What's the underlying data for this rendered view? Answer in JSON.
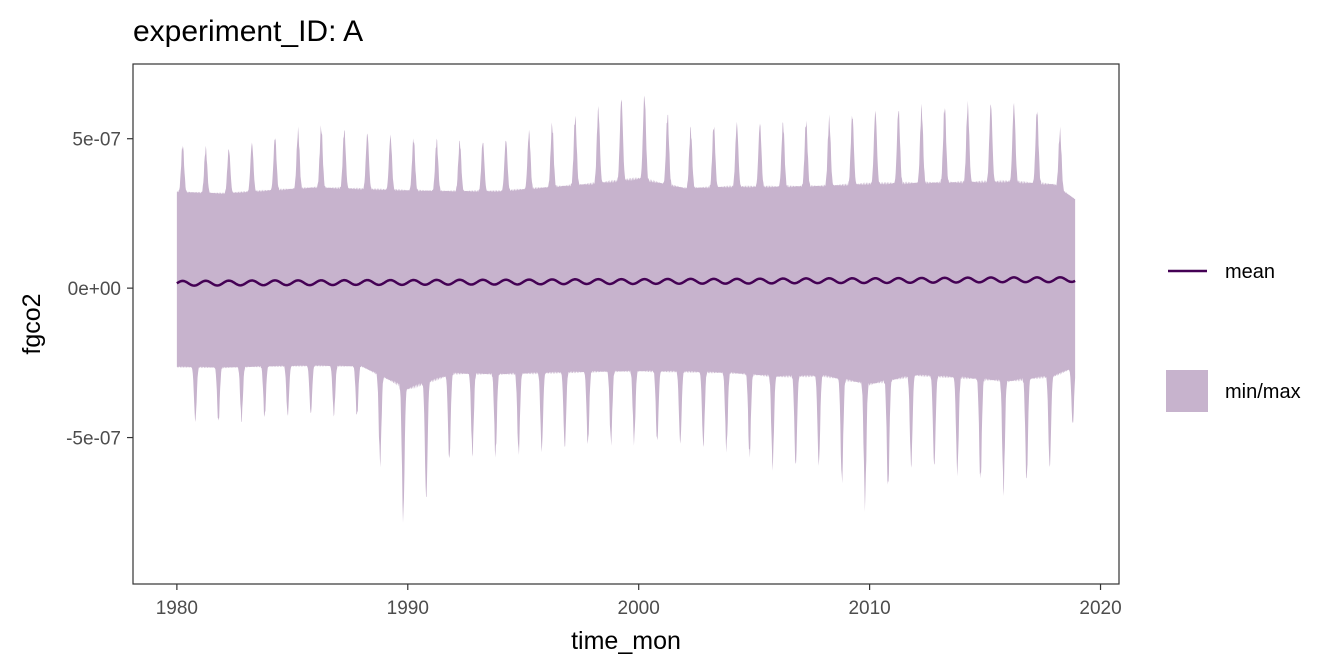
{
  "chart_data": {
    "type": "area",
    "title": "experiment_ID: A",
    "xlabel": "time_mon",
    "ylabel": "fgco2",
    "xlim": [
      1978.1,
      2020.8
    ],
    "ylim": [
      -9.9e-07,
      7.5e-07
    ],
    "x_ticks": [
      1980,
      1990,
      2000,
      2010,
      2020
    ],
    "x_tick_labels": [
      "1980",
      "1990",
      "2000",
      "2010",
      "2020"
    ],
    "y_ticks": [
      5e-07,
      0,
      -5e-07
    ],
    "y_tick_labels": [
      "5e-07",
      "0e+00",
      "-5e-07"
    ],
    "grid": false,
    "legend_position": "right",
    "series": [
      {
        "name": "mean",
        "kind": "line",
        "color": "#440154",
        "x": [
          1980,
          1982,
          1984,
          1986,
          1988,
          1990,
          1992,
          1994,
          1996,
          1998,
          2000,
          2002,
          2004,
          2006,
          2008,
          2010,
          2012,
          2014,
          2016,
          2018,
          2018.9
        ],
        "values": [
          1.6e-08,
          1.7e-08,
          1.8e-08,
          1.8e-08,
          1.9e-08,
          1.9e-08,
          2e-08,
          2e-08,
          2.1e-08,
          2.2e-08,
          2.2e-08,
          2.3e-08,
          2.3e-08,
          2.4e-08,
          2.5e-08,
          2.5e-08,
          2.6e-08,
          2.7e-08,
          2.8e-08,
          2.8e-08,
          2.9e-08
        ],
        "seasonal_amplitude": 8e-09
      },
      {
        "name": "min/max",
        "kind": "ribbon",
        "color": "#c7b3cd",
        "x": [
          1980,
          1982,
          1984,
          1986,
          1988,
          1990,
          1992,
          1994,
          1996,
          1998,
          2000,
          2002,
          2004,
          2006,
          2008,
          2010,
          2012,
          2014,
          2016,
          2018,
          2018.9
        ],
        "max_values": [
          4.8e-07,
          4.6e-07,
          5e-07,
          5.4e-07,
          5.2e-07,
          5e-07,
          4.9e-07,
          4.9e-07,
          5.4e-07,
          5.9e-07,
          6.6e-07,
          5.3e-07,
          5.5e-07,
          5.5e-07,
          5.6e-07,
          5.9e-07,
          6e-07,
          6.1e-07,
          6.2e-07,
          5.8e-07,
          3.8e-07
        ],
        "min_values": [
          -4.4e-07,
          -4.5e-07,
          -4.3e-07,
          -4.2e-07,
          -4.3e-07,
          -8.1e-07,
          -5.5e-07,
          -5.6e-07,
          -5.4e-07,
          -5.2e-07,
          -5.1e-07,
          -5.2e-07,
          -5.4e-07,
          -6e-07,
          -5.9e-07,
          -7.3e-07,
          -5.8e-07,
          -6.2e-07,
          -6.8e-07,
          -5.9e-07,
          -4.4e-07
        ]
      }
    ]
  }
}
